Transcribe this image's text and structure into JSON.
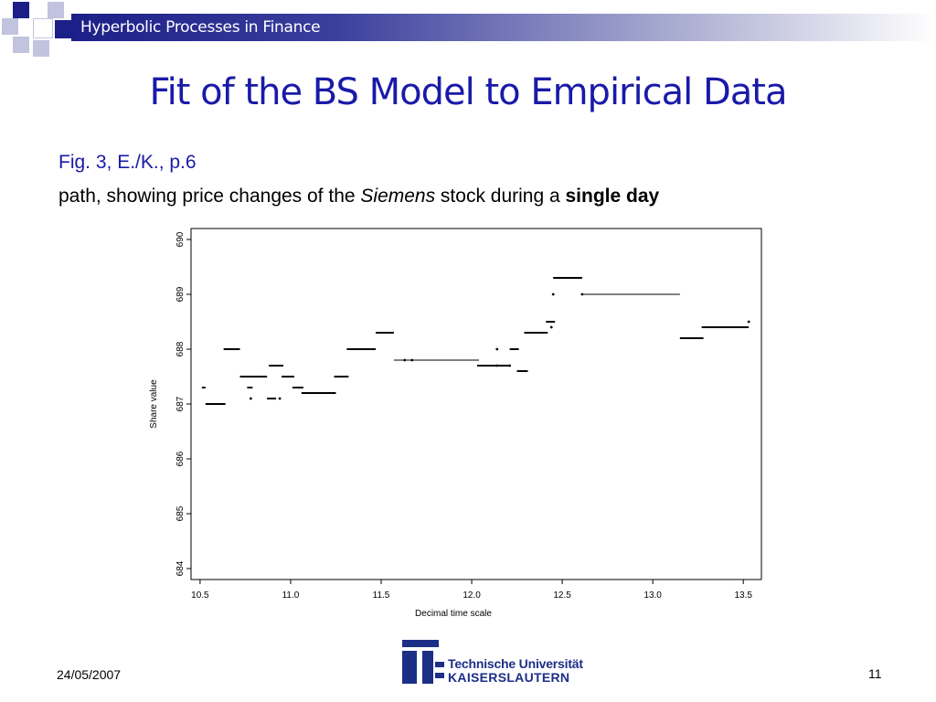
{
  "header": {
    "title": "Hyperbolic Processes in Finance"
  },
  "slide": {
    "title": "Fit of the BS Model to Empirical Data",
    "fig_ref": "Fig. 3, E./K., p.6",
    "caption": {
      "part1": "path, showing price changes of the ",
      "italic": "Siemens",
      "part2": " stock during a ",
      "bold": "single day"
    }
  },
  "footer": {
    "date": "24/05/2007",
    "page": "11"
  },
  "logo": {
    "line1": "Technische Universität",
    "line2": "KAISERSLAUTERN"
  },
  "colors": {
    "title": "#1a1aa8",
    "header": "#1c1f87",
    "logo": "#1c2f87"
  },
  "chart_data": {
    "type": "line",
    "style": "step-segments",
    "xlabel": "Decimal time scale",
    "ylabel": "Share value",
    "xlim": [
      10.45,
      13.6
    ],
    "ylim": [
      683.8,
      690.2
    ],
    "xticks": [
      "10.5",
      "11.0",
      "11.5",
      "12.0",
      "12.5",
      "13.0",
      "13.5"
    ],
    "yticks": [
      "684",
      "685",
      "686",
      "687",
      "688",
      "689",
      "690"
    ],
    "grid": false,
    "segments": [
      {
        "x0": 10.51,
        "x1": 10.53,
        "y": 687.3
      },
      {
        "x0": 10.53,
        "x1": 10.64,
        "y": 687.0
      },
      {
        "x0": 10.63,
        "x1": 10.72,
        "y": 688.0
      },
      {
        "x0": 10.72,
        "x1": 10.78,
        "y": 687.5
      },
      {
        "x0": 10.76,
        "x1": 10.79,
        "y": 687.3
      },
      {
        "x0": 10.78,
        "x1": 10.87,
        "y": 687.5
      },
      {
        "x0": 10.88,
        "x1": 10.96,
        "y": 687.7
      },
      {
        "x0": 10.87,
        "x1": 10.92,
        "y": 687.1
      },
      {
        "x0": 10.95,
        "x1": 11.02,
        "y": 687.5
      },
      {
        "x0": 11.01,
        "x1": 11.07,
        "y": 687.3
      },
      {
        "x0": 11.06,
        "x1": 11.25,
        "y": 687.2
      },
      {
        "x0": 11.24,
        "x1": 11.32,
        "y": 687.5
      },
      {
        "x0": 11.31,
        "x1": 11.47,
        "y": 688.0
      },
      {
        "x0": 11.47,
        "x1": 11.57,
        "y": 688.3
      },
      {
        "x0": 11.57,
        "x1": 12.04,
        "y": 687.8
      },
      {
        "x0": 12.03,
        "x1": 12.21,
        "y": 687.7
      },
      {
        "x0": 12.21,
        "x1": 12.26,
        "y": 688.0
      },
      {
        "x0": 12.25,
        "x1": 12.31,
        "y": 687.6
      },
      {
        "x0": 12.29,
        "x1": 12.42,
        "y": 688.3
      },
      {
        "x0": 12.41,
        "x1": 12.46,
        "y": 688.5
      },
      {
        "x0": 12.45,
        "x1": 12.61,
        "y": 689.3
      },
      {
        "x0": 12.61,
        "x1": 13.15,
        "y": 689.0
      },
      {
        "x0": 13.15,
        "x1": 13.28,
        "y": 688.2
      },
      {
        "x0": 13.27,
        "x1": 13.53,
        "y": 688.4
      }
    ],
    "points": [
      {
        "x": 10.78,
        "y": 687.1
      },
      {
        "x": 10.94,
        "y": 687.1
      },
      {
        "x": 11.63,
        "y": 687.8
      },
      {
        "x": 11.67,
        "y": 687.8
      },
      {
        "x": 12.14,
        "y": 688.0
      },
      {
        "x": 12.14,
        "y": 687.7
      },
      {
        "x": 12.21,
        "y": 687.7
      },
      {
        "x": 12.44,
        "y": 688.4
      },
      {
        "x": 12.45,
        "y": 689.0
      },
      {
        "x": 12.61,
        "y": 689.0
      },
      {
        "x": 13.53,
        "y": 688.5
      }
    ]
  }
}
